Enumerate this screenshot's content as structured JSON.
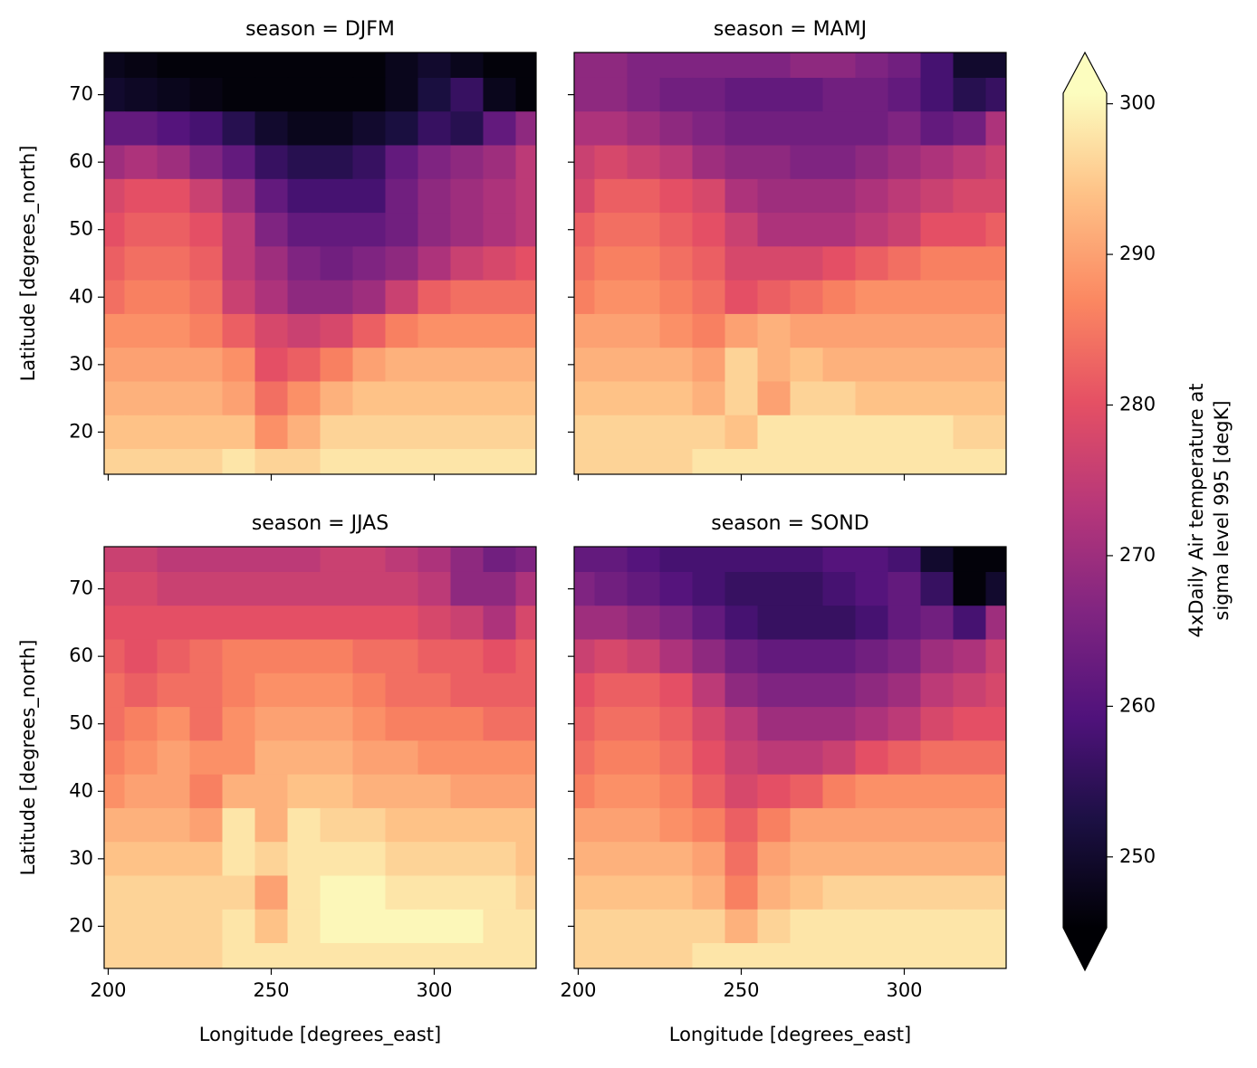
{
  "chart_data": {
    "type": "heatmap",
    "colormap": "magma",
    "x_label": "Longitude [degrees_east]",
    "y_label": "Latitude [degrees_north]",
    "colorbar_label": [
      "4xDaily Air temperature at",
      "sigma level 995 [degK]"
    ],
    "colorbar_extend": "both",
    "clim": [
      245.3,
      300.7
    ],
    "cticks": [
      250,
      260,
      270,
      280,
      290,
      300
    ],
    "xlim": [
      198.75,
      331.25
    ],
    "xticks": [
      200,
      250,
      300
    ],
    "ylim": [
      13.75,
      76.25
    ],
    "yticks": [
      20,
      30,
      40,
      50,
      60,
      70
    ],
    "x": [
      200,
      210,
      220,
      230,
      240,
      250,
      260,
      270,
      280,
      290,
      300,
      310,
      320,
      330
    ],
    "y": [
      75,
      70,
      65,
      60,
      55,
      50,
      45,
      40,
      35,
      30,
      25,
      20,
      15
    ],
    "panels": [
      {
        "title": "season = DJFM",
        "values": [
          [
            248,
            247,
            246,
            246,
            246,
            246,
            246,
            246,
            246,
            248,
            250,
            248,
            246,
            246
          ],
          [
            250,
            249,
            248,
            247,
            246,
            246,
            246,
            246,
            246,
            248,
            252,
            256,
            248,
            246
          ],
          [
            262,
            262,
            260,
            258,
            254,
            250,
            248,
            248,
            250,
            252,
            256,
            254,
            262,
            268
          ],
          [
            270,
            272,
            270,
            266,
            262,
            256,
            254,
            254,
            256,
            262,
            266,
            268,
            270,
            274
          ],
          [
            278,
            280,
            280,
            276,
            270,
            262,
            258,
            258,
            258,
            264,
            268,
            270,
            272,
            274
          ],
          [
            280,
            282,
            282,
            280,
            274,
            266,
            262,
            262,
            262,
            264,
            268,
            270,
            272,
            274
          ],
          [
            282,
            284,
            284,
            282,
            274,
            270,
            266,
            264,
            266,
            268,
            272,
            276,
            278,
            280
          ],
          [
            284,
            286,
            286,
            284,
            276,
            272,
            268,
            268,
            270,
            276,
            282,
            284,
            284,
            284
          ],
          [
            288,
            288,
            288,
            286,
            282,
            278,
            276,
            278,
            282,
            286,
            288,
            288,
            288,
            288
          ],
          [
            290,
            290,
            290,
            290,
            288,
            280,
            282,
            286,
            290,
            292,
            292,
            292,
            292,
            292
          ],
          [
            292,
            292,
            292,
            292,
            290,
            284,
            288,
            292,
            294,
            294,
            294,
            294,
            294,
            294
          ],
          [
            294,
            294,
            294,
            294,
            294,
            288,
            292,
            296,
            296,
            296,
            296,
            296,
            296,
            296
          ],
          [
            296,
            296,
            296,
            296,
            298,
            296,
            296,
            298,
            298,
            298,
            298,
            298,
            298,
            298
          ]
        ]
      },
      {
        "title": "season = MAMJ",
        "values": [
          [
            268,
            268,
            266,
            266,
            266,
            266,
            266,
            268,
            268,
            266,
            264,
            258,
            250,
            250
          ],
          [
            268,
            268,
            266,
            264,
            264,
            262,
            262,
            262,
            264,
            264,
            262,
            258,
            254,
            256
          ],
          [
            272,
            272,
            270,
            268,
            266,
            264,
            264,
            264,
            264,
            264,
            266,
            262,
            264,
            272
          ],
          [
            276,
            278,
            276,
            274,
            270,
            268,
            268,
            266,
            266,
            268,
            270,
            272,
            274,
            276
          ],
          [
            278,
            282,
            282,
            280,
            278,
            272,
            270,
            270,
            270,
            272,
            274,
            276,
            278,
            278
          ],
          [
            282,
            284,
            284,
            282,
            280,
            276,
            272,
            272,
            272,
            274,
            276,
            280,
            280,
            282
          ],
          [
            284,
            286,
            286,
            284,
            282,
            278,
            278,
            278,
            280,
            282,
            284,
            286,
            286,
            286
          ],
          [
            286,
            288,
            288,
            286,
            284,
            280,
            282,
            284,
            286,
            288,
            288,
            288,
            288,
            288
          ],
          [
            290,
            290,
            290,
            288,
            286,
            290,
            292,
            290,
            290,
            290,
            290,
            290,
            290,
            290
          ],
          [
            292,
            292,
            292,
            292,
            290,
            296,
            292,
            294,
            292,
            292,
            292,
            292,
            292,
            292
          ],
          [
            294,
            294,
            294,
            294,
            292,
            296,
            290,
            296,
            296,
            294,
            294,
            294,
            294,
            294
          ],
          [
            296,
            296,
            296,
            296,
            296,
            294,
            298,
            298,
            298,
            298,
            298,
            298,
            296,
            296
          ],
          [
            296,
            296,
            296,
            296,
            298,
            298,
            298,
            298,
            298,
            298,
            298,
            298,
            298,
            298
          ]
        ]
      },
      {
        "title": "season = JJAS",
        "values": [
          [
            276,
            276,
            274,
            274,
            274,
            274,
            274,
            276,
            276,
            274,
            272,
            268,
            264,
            266
          ],
          [
            278,
            278,
            276,
            276,
            276,
            276,
            276,
            276,
            276,
            276,
            274,
            268,
            268,
            272
          ],
          [
            280,
            280,
            280,
            280,
            280,
            280,
            280,
            280,
            280,
            280,
            278,
            276,
            272,
            278
          ],
          [
            282,
            280,
            282,
            284,
            286,
            286,
            286,
            286,
            284,
            284,
            282,
            282,
            280,
            282
          ],
          [
            284,
            282,
            284,
            284,
            286,
            288,
            288,
            288,
            286,
            284,
            284,
            282,
            282,
            282
          ],
          [
            284,
            286,
            288,
            284,
            288,
            290,
            290,
            290,
            288,
            286,
            286,
            286,
            284,
            284
          ],
          [
            286,
            288,
            290,
            288,
            288,
            292,
            292,
            292,
            290,
            290,
            288,
            288,
            288,
            288
          ],
          [
            288,
            290,
            290,
            286,
            292,
            292,
            294,
            294,
            292,
            292,
            292,
            290,
            290,
            290
          ],
          [
            292,
            292,
            292,
            290,
            298,
            292,
            298,
            296,
            296,
            294,
            294,
            294,
            294,
            294
          ],
          [
            294,
            294,
            294,
            294,
            298,
            296,
            298,
            298,
            298,
            296,
            296,
            296,
            296,
            294
          ],
          [
            296,
            296,
            296,
            296,
            296,
            290,
            298,
            300,
            300,
            298,
            298,
            298,
            298,
            296
          ],
          [
            296,
            296,
            296,
            296,
            298,
            294,
            298,
            300,
            300,
            300,
            300,
            300,
            298,
            298
          ],
          [
            296,
            296,
            296,
            296,
            298,
            298,
            298,
            298,
            298,
            298,
            298,
            298,
            298,
            298
          ]
        ]
      },
      {
        "title": "season = SOND",
        "values": [
          [
            262,
            262,
            260,
            258,
            258,
            258,
            258,
            258,
            260,
            260,
            258,
            250,
            246,
            246
          ],
          [
            266,
            264,
            262,
            260,
            258,
            256,
            256,
            256,
            258,
            260,
            262,
            256,
            246,
            250
          ],
          [
            270,
            270,
            268,
            266,
            262,
            258,
            256,
            256,
            256,
            258,
            262,
            264,
            258,
            270
          ],
          [
            276,
            278,
            276,
            272,
            268,
            264,
            262,
            262,
            262,
            264,
            266,
            270,
            272,
            276
          ],
          [
            280,
            282,
            282,
            280,
            274,
            268,
            266,
            266,
            266,
            268,
            270,
            274,
            276,
            278
          ],
          [
            282,
            284,
            284,
            282,
            278,
            274,
            270,
            270,
            270,
            272,
            274,
            278,
            280,
            280
          ],
          [
            284,
            286,
            286,
            284,
            280,
            276,
            274,
            274,
            276,
            280,
            282,
            284,
            284,
            284
          ],
          [
            286,
            288,
            288,
            286,
            282,
            278,
            280,
            282,
            286,
            288,
            288,
            288,
            288,
            288
          ],
          [
            290,
            290,
            290,
            288,
            286,
            282,
            286,
            290,
            290,
            290,
            290,
            290,
            290,
            290
          ],
          [
            292,
            292,
            292,
            292,
            290,
            284,
            290,
            292,
            292,
            292,
            292,
            292,
            292,
            292
          ],
          [
            294,
            294,
            294,
            294,
            292,
            286,
            292,
            294,
            296,
            296,
            296,
            296,
            296,
            296
          ],
          [
            296,
            296,
            296,
            296,
            296,
            292,
            296,
            298,
            298,
            298,
            298,
            298,
            298,
            298
          ],
          [
            296,
            296,
            296,
            296,
            298,
            298,
            298,
            298,
            298,
            298,
            298,
            298,
            298,
            298
          ]
        ]
      }
    ]
  }
}
